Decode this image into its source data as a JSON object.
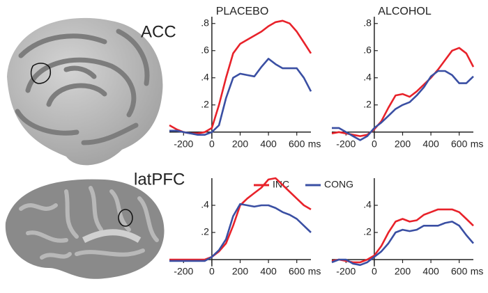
{
  "rows": [
    "ACC",
    "latPFC"
  ],
  "chart_data": [
    {
      "type": "line",
      "title": "PLACEBO",
      "x_label": "ms",
      "x": [
        -300,
        -250,
        -200,
        -150,
        -100,
        -50,
        0,
        50,
        100,
        150,
        200,
        250,
        300,
        350,
        400,
        450,
        500,
        550,
        600,
        650,
        700
      ],
      "xlim": [
        -300,
        700
      ],
      "xticks": [
        -200,
        0,
        200,
        400,
        600
      ],
      "ylim": [
        -0.05,
        0.85
      ],
      "yticks": [
        {
          "value": 0.8,
          "label": ".8"
        },
        {
          "value": 0.6,
          "label": ".6"
        },
        {
          "value": 0.4,
          "label": ".4"
        },
        {
          "value": 0.2,
          "label": ".2"
        }
      ],
      "series": [
        {
          "name": "INC",
          "color": "#e8222a",
          "values": [
            0.05,
            0.02,
            0.0,
            -0.01,
            -0.01,
            0.0,
            0.03,
            0.2,
            0.4,
            0.58,
            0.65,
            0.68,
            0.71,
            0.74,
            0.78,
            0.81,
            0.82,
            0.8,
            0.74,
            0.66,
            0.58
          ]
        },
        {
          "name": "CONG",
          "color": "#3a4fa3",
          "values": [
            0.01,
            0.01,
            0.0,
            -0.01,
            -0.02,
            -0.02,
            0.0,
            0.05,
            0.25,
            0.4,
            0.43,
            0.42,
            0.41,
            0.48,
            0.54,
            0.5,
            0.47,
            0.47,
            0.47,
            0.4,
            0.3
          ]
        }
      ]
    },
    {
      "type": "line",
      "title": "ALCOHOL",
      "x_label": "ms",
      "x": [
        -300,
        -250,
        -200,
        -150,
        -100,
        -50,
        0,
        50,
        100,
        150,
        200,
        250,
        300,
        350,
        400,
        450,
        500,
        550,
        600,
        650,
        700
      ],
      "xlim": [
        -300,
        700
      ],
      "xticks": [
        -200,
        0,
        200,
        400,
        600
      ],
      "ylim": [
        -0.05,
        0.85
      ],
      "yticks": [
        {
          "value": 0.8,
          "label": ".8"
        },
        {
          "value": 0.6,
          "label": ".6"
        },
        {
          "value": 0.4,
          "label": ".4"
        },
        {
          "value": 0.2,
          "label": ".2"
        }
      ],
      "series": [
        {
          "name": "INC",
          "color": "#e8222a",
          "values": [
            -0.01,
            0.0,
            -0.01,
            -0.02,
            -0.03,
            -0.02,
            0.02,
            0.08,
            0.18,
            0.27,
            0.28,
            0.26,
            0.3,
            0.35,
            0.4,
            0.46,
            0.53,
            0.6,
            0.62,
            0.58,
            0.48
          ]
        },
        {
          "name": "CONG",
          "color": "#3a4fa3",
          "values": [
            0.03,
            0.03,
            0.0,
            -0.03,
            -0.06,
            -0.03,
            0.03,
            0.07,
            0.12,
            0.17,
            0.2,
            0.22,
            0.27,
            0.33,
            0.41,
            0.45,
            0.45,
            0.42,
            0.36,
            0.36,
            0.41
          ]
        }
      ]
    },
    {
      "type": "line",
      "x_label": "ms",
      "x": [
        -300,
        -250,
        -200,
        -150,
        -100,
        -50,
        0,
        50,
        100,
        150,
        200,
        250,
        300,
        350,
        400,
        450,
        500,
        550,
        600,
        650,
        700
      ],
      "xlim": [
        -300,
        700
      ],
      "xticks": [
        -200,
        0,
        200,
        400,
        600
      ],
      "ylim": [
        -0.05,
        0.6
      ],
      "yticks": [
        {
          "value": 0.4,
          "label": ".4"
        },
        {
          "value": 0.2,
          "label": ".2"
        }
      ],
      "series": [
        {
          "name": "INC",
          "color": "#e8222a",
          "values": [
            0,
            0,
            0,
            0,
            0,
            0,
            0.02,
            0.06,
            0.12,
            0.25,
            0.4,
            0.45,
            0.49,
            0.53,
            0.59,
            0.6,
            0.55,
            0.5,
            0.45,
            0.4,
            0.37
          ]
        },
        {
          "name": "CONG",
          "color": "#3a4fa3",
          "values": [
            -0.01,
            -0.01,
            -0.01,
            -0.01,
            -0.01,
            -0.01,
            0.02,
            0.07,
            0.15,
            0.32,
            0.41,
            0.4,
            0.39,
            0.4,
            0.4,
            0.38,
            0.35,
            0.33,
            0.3,
            0.25,
            0.2
          ]
        }
      ]
    },
    {
      "type": "line",
      "x_label": "ms",
      "x": [
        -300,
        -250,
        -200,
        -150,
        -100,
        -50,
        0,
        50,
        100,
        150,
        200,
        250,
        300,
        350,
        400,
        450,
        500,
        550,
        600,
        650,
        700
      ],
      "xlim": [
        -300,
        700
      ],
      "xticks": [
        -200,
        0,
        200,
        400,
        600
      ],
      "ylim": [
        -0.05,
        0.6
      ],
      "yticks": [
        {
          "value": 0.4,
          "label": ".4"
        },
        {
          "value": 0.2,
          "label": ".2"
        }
      ],
      "series": [
        {
          "name": "INC",
          "color": "#e8222a",
          "values": [
            -0.01,
            0,
            -0.01,
            -0.02,
            -0.02,
            0,
            0.03,
            0.1,
            0.2,
            0.28,
            0.3,
            0.28,
            0.29,
            0.33,
            0.35,
            0.37,
            0.37,
            0.37,
            0.35,
            0.3,
            0.25
          ]
        },
        {
          "name": "CONG",
          "color": "#3a4fa3",
          "values": [
            -0.02,
            0,
            0,
            -0.03,
            -0.04,
            -0.02,
            0.02,
            0.06,
            0.12,
            0.2,
            0.22,
            0.21,
            0.22,
            0.25,
            0.25,
            0.25,
            0.27,
            0.28,
            0.25,
            0.18,
            0.12
          ]
        }
      ]
    }
  ]
}
